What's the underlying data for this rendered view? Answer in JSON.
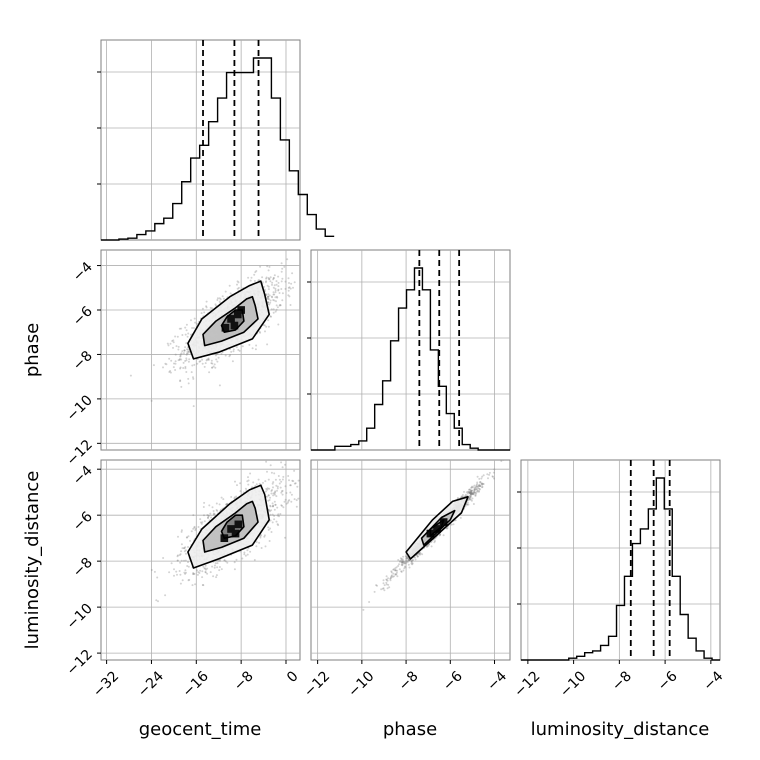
{
  "chart_data": {
    "type": "corner",
    "grid": true,
    "parameters": [
      {
        "name": "geocent_time",
        "label": "geocent_time",
        "range": [
          -33,
          2.5
        ],
        "ticks": [
          -32,
          -24,
          -16,
          -8,
          0
        ],
        "tick_labels": [
          "−32",
          "−24",
          "−16",
          "−8",
          "0"
        ],
        "quantiles": [
          -14.8,
          -9.2,
          -4.9
        ]
      },
      {
        "name": "phase",
        "label": "phase",
        "range": [
          -12.3,
          -3.3
        ],
        "ticks": [
          -12,
          -10,
          -8,
          -6,
          -4
        ],
        "tick_labels": [
          "−12",
          "−10",
          "−8",
          "−6",
          "−4"
        ],
        "quantiles": [
          -7.4,
          -6.5,
          -5.6
        ]
      },
      {
        "name": "luminosity_distance",
        "label": "luminosity_distance",
        "range": [
          -12.3,
          -3.6
        ],
        "ticks": [
          -12,
          -10,
          -8,
          -6,
          -4
        ],
        "tick_labels": [
          "−12",
          "−10",
          "−8",
          "−6",
          "−4"
        ],
        "quantiles": [
          -7.5,
          -6.5,
          -5.8
        ]
      }
    ],
    "histograms": [
      {
        "param": "geocent_time",
        "edges_start": -33,
        "bin_width": 1.6,
        "counts": [
          0.0,
          0.0,
          0.005,
          0.01,
          0.03,
          0.05,
          0.09,
          0.12,
          0.2,
          0.32,
          0.45,
          0.52,
          0.65,
          0.78,
          0.92,
          0.92,
          0.92,
          1.0,
          1.0,
          0.78,
          0.55,
          0.38,
          0.25,
          0.14,
          0.06,
          0.02
        ]
      },
      {
        "param": "phase",
        "edges_start": -12.3,
        "bin_width": 0.36,
        "counts": [
          0.0,
          0.0,
          0.0,
          0.02,
          0.02,
          0.03,
          0.05,
          0.12,
          0.25,
          0.38,
          0.6,
          0.78,
          0.88,
          1.0,
          0.88,
          0.55,
          0.35,
          0.2,
          0.12,
          0.03,
          0.01,
          0.0,
          0.0,
          0.0,
          0.0
        ]
      },
      {
        "param": "luminosity_distance",
        "edges_start": -12.3,
        "bin_width": 0.348,
        "counts": [
          0.0,
          0.0,
          0.0,
          0.0,
          0.0,
          0.0,
          0.01,
          0.02,
          0.04,
          0.05,
          0.08,
          0.13,
          0.3,
          0.46,
          0.64,
          0.72,
          0.83,
          1.0,
          0.83,
          0.46,
          0.25,
          0.12,
          0.05,
          0.01,
          0.0
        ]
      }
    ],
    "scatter_pairs": [
      {
        "x": "geocent_time",
        "y": "phase",
        "mean": [
          -9.5,
          -6.5
        ],
        "sd": [
          4.5,
          0.95
        ],
        "corr": 0.72,
        "contours": [
          {
            "cx": -9.5,
            "cy": -6.5,
            "levels": [
              [
                -3.8,
                -5.3
              ],
              [
                -3.0,
                -6.2
              ],
              [
                -6.0,
                -7.3
              ],
              [
                -12.0,
                -7.9
              ],
              [
                -16.5,
                -8.2
              ],
              [
                -17.5,
                -7.5
              ],
              [
                -15.0,
                -6.4
              ],
              [
                -10.0,
                -5.4
              ],
              [
                -6.5,
                -4.9
              ],
              [
                -4.5,
                -4.7
              ]
            ]
          },
          {
            "cx": -9.5,
            "cy": -6.5,
            "levels": [
              [
                -5.5,
                -5.8
              ],
              [
                -5.0,
                -6.4
              ],
              [
                -7.5,
                -7.0
              ],
              [
                -11.5,
                -7.4
              ],
              [
                -14.5,
                -7.6
              ],
              [
                -14.8,
                -7.1
              ],
              [
                -12.5,
                -6.5
              ],
              [
                -9.0,
                -5.9
              ],
              [
                -7.0,
                -5.5
              ],
              [
                -6.0,
                -5.4
              ]
            ]
          },
          {
            "cx": -9.5,
            "cy": -6.5,
            "levels": [
              [
                -7.8,
                -6.0
              ],
              [
                -7.5,
                -6.5
              ],
              [
                -9.0,
                -6.9
              ],
              [
                -11.0,
                -7.0
              ],
              [
                -11.5,
                -6.7
              ],
              [
                -10.5,
                -6.3
              ],
              [
                -9.0,
                -6.0
              ]
            ]
          }
        ],
        "dark_cells": [
          [
            -9.8,
            -6.4
          ],
          [
            -8.6,
            -6.2
          ],
          [
            -10.8,
            -6.8
          ],
          [
            -9.2,
            -6.7
          ],
          [
            -8.0,
            -6.0
          ]
        ]
      },
      {
        "x": "geocent_time",
        "y": "luminosity_distance",
        "mean": [
          -9.5,
          -6.5
        ],
        "sd": [
          4.5,
          0.95
        ],
        "corr": 0.72,
        "contours": [
          {
            "levels": [
              [
                -3.8,
                -5.1
              ],
              [
                -3.0,
                -6.2
              ],
              [
                -6.0,
                -7.3
              ],
              [
                -12.0,
                -7.9
              ],
              [
                -16.5,
                -8.3
              ],
              [
                -17.5,
                -7.6
              ],
              [
                -15.0,
                -6.6
              ],
              [
                -10.0,
                -5.5
              ],
              [
                -6.5,
                -4.9
              ],
              [
                -4.5,
                -4.7
              ]
            ]
          },
          {
            "levels": [
              [
                -5.5,
                -5.7
              ],
              [
                -5.0,
                -6.3
              ],
              [
                -7.5,
                -7.0
              ],
              [
                -11.5,
                -7.4
              ],
              [
                -14.5,
                -7.6
              ],
              [
                -14.8,
                -7.1
              ],
              [
                -12.5,
                -6.5
              ],
              [
                -9.0,
                -5.9
              ],
              [
                -7.0,
                -5.5
              ],
              [
                -6.0,
                -5.4
              ]
            ]
          },
          {
            "levels": [
              [
                -7.8,
                -6.0
              ],
              [
                -7.5,
                -6.5
              ],
              [
                -9.0,
                -6.9
              ],
              [
                -11.0,
                -7.0
              ],
              [
                -11.5,
                -6.7
              ],
              [
                -10.5,
                -6.3
              ],
              [
                -9.0,
                -6.0
              ]
            ]
          }
        ],
        "dark_cells": [
          [
            -8.5,
            -6.4
          ],
          [
            -9.8,
            -6.6
          ],
          [
            -11.0,
            -7.0
          ],
          [
            -9.0,
            -6.8
          ]
        ]
      },
      {
        "x": "phase",
        "y": "luminosity_distance",
        "mean": [
          -6.5,
          -6.5
        ],
        "sd": [
          0.95,
          0.95
        ],
        "corr": 0.985,
        "contours": [
          {
            "levels": [
              [
                -5.2,
                -5.2
              ],
              [
                -5.5,
                -5.9
              ],
              [
                -7.8,
                -7.9
              ],
              [
                -8.0,
                -7.6
              ],
              [
                -6.8,
                -6.2
              ],
              [
                -5.9,
                -5.4
              ]
            ]
          },
          {
            "levels": [
              [
                -5.8,
                -5.8
              ],
              [
                -6.0,
                -6.2
              ],
              [
                -7.2,
                -7.3
              ],
              [
                -7.3,
                -7.0
              ],
              [
                -6.4,
                -6.1
              ]
            ]
          },
          {
            "levels": [
              [
                -6.3,
                -6.2
              ],
              [
                -6.4,
                -6.5
              ],
              [
                -6.9,
                -6.9
              ],
              [
                -6.9,
                -6.6
              ]
            ]
          }
        ],
        "dark_cells": [
          [
            -6.6,
            -6.6
          ],
          [
            -6.3,
            -6.3
          ],
          [
            -6.9,
            -6.8
          ]
        ]
      }
    ],
    "n_points": 1400,
    "colors": {
      "hist": "#000000",
      "scatter": "#808080",
      "contour": "#000000",
      "quantile": "#000000",
      "frame": "#7f7f7f",
      "grid": "#b0b0b0"
    }
  }
}
